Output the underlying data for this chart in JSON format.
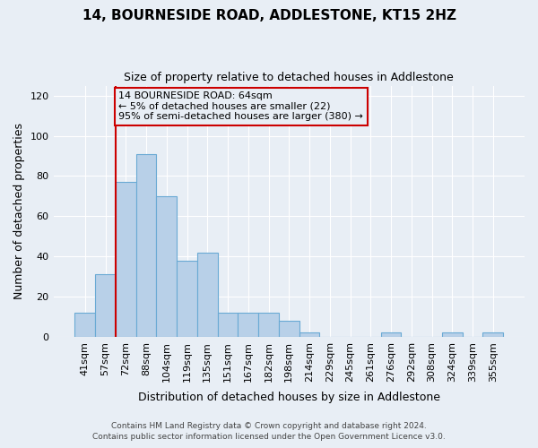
{
  "title": "14, BOURNESIDE ROAD, ADDLESTONE, KT15 2HZ",
  "subtitle": "Size of property relative to detached houses in Addlestone",
  "xlabel": "Distribution of detached houses by size in Addlestone",
  "ylabel": "Number of detached properties",
  "footer_line1": "Contains HM Land Registry data © Crown copyright and database right 2024.",
  "footer_line2": "Contains public sector information licensed under the Open Government Licence v3.0.",
  "bar_labels": [
    "41sqm",
    "57sqm",
    "72sqm",
    "88sqm",
    "104sqm",
    "119sqm",
    "135sqm",
    "151sqm",
    "167sqm",
    "182sqm",
    "198sqm",
    "214sqm",
    "229sqm",
    "245sqm",
    "261sqm",
    "276sqm",
    "292sqm",
    "308sqm",
    "324sqm",
    "339sqm",
    "355sqm"
  ],
  "bar_heights": [
    12,
    31,
    77,
    91,
    70,
    38,
    42,
    12,
    12,
    12,
    8,
    2,
    0,
    0,
    0,
    2,
    0,
    0,
    2,
    0,
    2
  ],
  "bar_color": "#b8d0e8",
  "bar_edge_color": "#6aaad4",
  "ylim": [
    0,
    125
  ],
  "yticks": [
    0,
    20,
    40,
    60,
    80,
    100,
    120
  ],
  "vline_x_index": 1.5,
  "vline_color": "#cc0000",
  "annotation_line1": "14 BOURNESIDE ROAD: 64sqm",
  "annotation_line2": "← 5% of detached houses are smaller (22)",
  "annotation_line3": "95% of semi-detached houses are larger (380) →",
  "annotation_box_color": "#cc0000",
  "background_color": "#e8eef5",
  "plot_bg_color": "#e8eef5",
  "grid_color": "#ffffff",
  "title_fontsize": 11,
  "subtitle_fontsize": 9,
  "ylabel_fontsize": 9,
  "xlabel_fontsize": 9,
  "tick_fontsize": 8,
  "footer_fontsize": 6.5
}
